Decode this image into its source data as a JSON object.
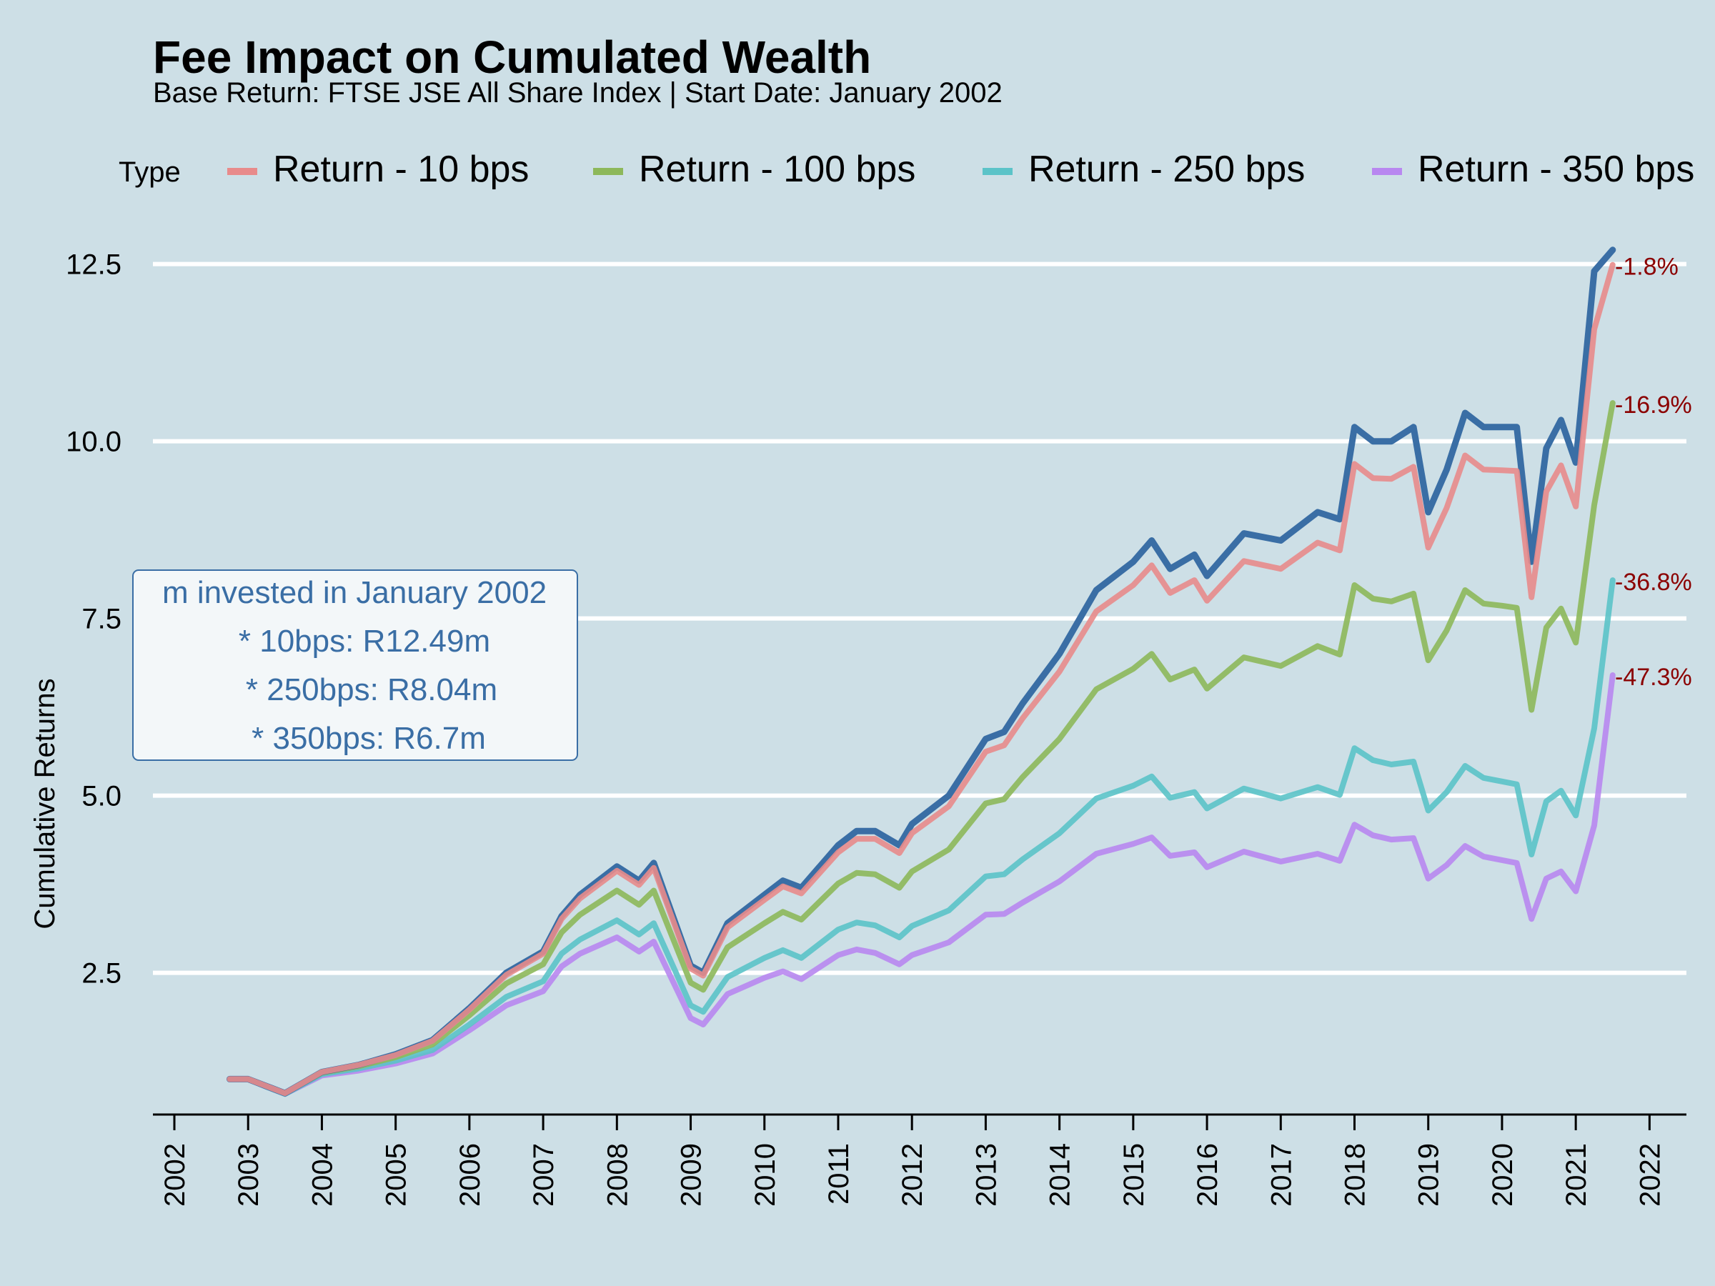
{
  "chart_data": {
    "type": "line",
    "title": "Fee Impact on Cumulated Wealth",
    "subtitle": "Base Return: FTSE JSE All Share Index | Start Date: January 2002",
    "xlabel": "",
    "ylabel": "Cumulative Returns",
    "legend_title": "Type",
    "legend_position": "top",
    "grid": "horizontal major",
    "xlim": [
      2002,
      2022.5
    ],
    "ylim": [
      0.5,
      12.9
    ],
    "x_ticks": [
      "2002",
      "2003",
      "2004",
      "2005",
      "2006",
      "2007",
      "2008",
      "2009",
      "2010",
      "2011",
      "2012",
      "2013",
      "2014",
      "2015",
      "2016",
      "2017",
      "2018",
      "2019",
      "2020",
      "2021",
      "2022"
    ],
    "y_ticks": [
      "2.5",
      "5.0",
      "7.5",
      "10.0",
      "12.5"
    ],
    "x": [
      2002.75,
      2003.0,
      2003.25,
      2003.5,
      2004.0,
      2004.5,
      2005.0,
      2005.5,
      2006.0,
      2006.5,
      2007.0,
      2007.25,
      2007.5,
      2008.0,
      2008.3,
      2008.5,
      2009.0,
      2009.17,
      2009.5,
      2010.0,
      2010.25,
      2010.5,
      2011.0,
      2011.25,
      2011.5,
      2011.83,
      2012.0,
      2012.5,
      2013.0,
      2013.25,
      2013.5,
      2014.0,
      2014.5,
      2015.0,
      2015.25,
      2015.5,
      2015.83,
      2016.0,
      2016.5,
      2017.0,
      2017.5,
      2017.8,
      2018.0,
      2018.25,
      2018.5,
      2018.8,
      2019.0,
      2019.25,
      2019.5,
      2019.75,
      2020.0,
      2020.2,
      2020.4,
      2020.6,
      2020.8,
      2021.0,
      2021.25,
      2021.5
    ],
    "series": [
      {
        "name": "",
        "color": "#3a6ea5",
        "width": 9,
        "values": [
          1.0,
          1.0,
          0.9,
          0.8,
          1.1,
          1.2,
          1.35,
          1.55,
          2.0,
          2.5,
          2.8,
          3.3,
          3.6,
          4.0,
          3.8,
          4.05,
          2.6,
          2.5,
          3.2,
          3.6,
          3.8,
          3.7,
          4.3,
          4.5,
          4.5,
          4.3,
          4.6,
          5.0,
          5.8,
          5.9,
          6.3,
          7.0,
          7.9,
          8.3,
          8.6,
          8.2,
          8.4,
          8.1,
          8.7,
          8.6,
          9.0,
          8.9,
          10.2,
          10.0,
          10.0,
          10.2,
          9.0,
          9.6,
          10.4,
          10.2,
          10.2,
          10.2,
          8.3,
          9.9,
          10.3,
          9.7,
          12.4,
          12.7
        ]
      },
      {
        "name": "Return - 10 bps",
        "color": "#e88b8b",
        "width": 8,
        "values": [
          1.0,
          1.0,
          0.9,
          0.8,
          1.1,
          1.2,
          1.34,
          1.54,
          1.98,
          2.47,
          2.77,
          3.26,
          3.55,
          3.94,
          3.74,
          3.98,
          2.56,
          2.46,
          3.14,
          3.53,
          3.72,
          3.62,
          4.2,
          4.39,
          4.39,
          4.19,
          4.47,
          4.85,
          5.62,
          5.71,
          6.09,
          6.75,
          7.6,
          7.97,
          8.25,
          7.86,
          8.04,
          7.75,
          8.31,
          8.2,
          8.57,
          8.46,
          9.68,
          9.48,
          9.47,
          9.64,
          8.5,
          9.06,
          9.8,
          9.6,
          9.59,
          9.58,
          7.8,
          9.29,
          9.66,
          9.08,
          11.58,
          12.49
        ]
      },
      {
        "name": "Return - 100 bps",
        "color": "#8db85a",
        "width": 8,
        "values": [
          1.0,
          1.0,
          0.9,
          0.8,
          1.09,
          1.18,
          1.31,
          1.49,
          1.9,
          2.35,
          2.62,
          3.07,
          3.32,
          3.66,
          3.46,
          3.66,
          2.36,
          2.26,
          2.86,
          3.2,
          3.36,
          3.25,
          3.76,
          3.91,
          3.89,
          3.7,
          3.93,
          4.24,
          4.89,
          4.95,
          5.26,
          5.8,
          6.5,
          6.79,
          7.0,
          6.64,
          6.78,
          6.51,
          6.95,
          6.83,
          7.11,
          6.99,
          7.97,
          7.78,
          7.74,
          7.85,
          6.91,
          7.33,
          7.9,
          7.71,
          7.68,
          7.65,
          6.21,
          7.37,
          7.64,
          7.16,
          9.1,
          10.54
        ]
      },
      {
        "name": "Return - 250 bps",
        "color": "#5bc3c8",
        "width": 8,
        "values": [
          1.0,
          1.0,
          0.89,
          0.79,
          1.07,
          1.15,
          1.26,
          1.41,
          1.77,
          2.16,
          2.38,
          2.77,
          2.97,
          3.24,
          3.04,
          3.2,
          2.04,
          1.95,
          2.44,
          2.71,
          2.82,
          2.71,
          3.11,
          3.21,
          3.17,
          3.0,
          3.16,
          3.38,
          3.86,
          3.89,
          4.1,
          4.47,
          4.96,
          5.14,
          5.27,
          4.97,
          5.05,
          4.82,
          5.1,
          4.96,
          5.12,
          5.01,
          5.67,
          5.5,
          5.44,
          5.48,
          4.79,
          5.05,
          5.42,
          5.25,
          5.2,
          5.16,
          4.17,
          4.92,
          5.07,
          4.72,
          5.95,
          8.04
        ]
      },
      {
        "name": "Return - 350 bps",
        "color": "#b887f0",
        "width": 8,
        "values": [
          1.0,
          1.0,
          0.89,
          0.79,
          1.05,
          1.12,
          1.22,
          1.36,
          1.69,
          2.04,
          2.24,
          2.59,
          2.77,
          3.0,
          2.8,
          2.94,
          1.86,
          1.77,
          2.2,
          2.43,
          2.52,
          2.41,
          2.75,
          2.83,
          2.78,
          2.62,
          2.75,
          2.93,
          3.32,
          3.33,
          3.49,
          3.79,
          4.18,
          4.32,
          4.41,
          4.15,
          4.2,
          3.99,
          4.21,
          4.07,
          4.18,
          4.08,
          4.59,
          4.44,
          4.38,
          4.4,
          3.83,
          4.02,
          4.29,
          4.14,
          4.09,
          4.05,
          3.26,
          3.83,
          3.93,
          3.65,
          4.58,
          6.7
        ]
      }
    ],
    "end_labels": [
      "-1.8%",
      "-16.9%",
      "-36.8%",
      "-47.3%"
    ],
    "annotation_lines": [
      "m invested in January 2002",
      "* 10bps: R12.49m",
      "* 250bps: R8.04m",
      "* 350bps: R6.7m"
    ]
  }
}
